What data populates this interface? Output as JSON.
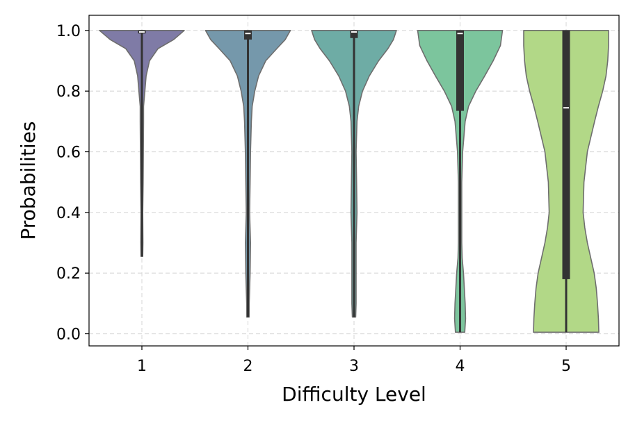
{
  "chart_data": {
    "type": "violin",
    "title": "",
    "xlabel": "Difficulty Level",
    "ylabel": "Probabilities",
    "ylim": [
      -0.04,
      1.05
    ],
    "yticks": [
      "0.0",
      "0.2",
      "0.4",
      "0.6",
      "0.8",
      "1.0"
    ],
    "categories": [
      "1",
      "2",
      "3",
      "4",
      "5"
    ],
    "grid": true,
    "colors": [
      "#7f7ba6",
      "#7598ab",
      "#6eaca5",
      "#7cc59d",
      "#b2d887"
    ],
    "series": [
      {
        "category": "1",
        "min": 0.255,
        "q1": 0.99,
        "median": 0.995,
        "q3": 1.0,
        "max": 1.0,
        "density_y": [
          0.255,
          0.3,
          0.4,
          0.5,
          0.6,
          0.7,
          0.75,
          0.8,
          0.85,
          0.9,
          0.94,
          0.97,
          1.0
        ],
        "density_halfwidth": [
          0.02,
          0.025,
          0.02,
          0.03,
          0.035,
          0.04,
          0.04,
          0.07,
          0.1,
          0.18,
          0.38,
          0.75,
          1.0
        ]
      },
      {
        "category": "2",
        "min": 0.055,
        "q1": 0.97,
        "median": 0.99,
        "q3": 1.0,
        "max": 1.0,
        "density_y": [
          0.055,
          0.1,
          0.2,
          0.3,
          0.4,
          0.5,
          0.6,
          0.7,
          0.75,
          0.8,
          0.85,
          0.9,
          0.94,
          0.97,
          1.0
        ],
        "density_halfwidth": [
          0.03,
          0.03,
          0.05,
          0.06,
          0.04,
          0.05,
          0.06,
          0.08,
          0.1,
          0.16,
          0.25,
          0.42,
          0.68,
          0.88,
          1.0
        ]
      },
      {
        "category": "3",
        "min": 0.055,
        "q1": 0.975,
        "median": 0.995,
        "q3": 1.0,
        "max": 1.0,
        "density_y": [
          0.055,
          0.1,
          0.2,
          0.3,
          0.4,
          0.5,
          0.6,
          0.7,
          0.75,
          0.8,
          0.85,
          0.9,
          0.94,
          0.97,
          1.0
        ],
        "density_halfwidth": [
          0.04,
          0.05,
          0.05,
          0.05,
          0.07,
          0.06,
          0.05,
          0.07,
          0.11,
          0.2,
          0.36,
          0.58,
          0.8,
          0.93,
          1.0
        ]
      },
      {
        "category": "4",
        "min": 0.005,
        "q1": 0.735,
        "median": 0.99,
        "q3": 1.0,
        "max": 1.0,
        "density_y": [
          0.005,
          0.05,
          0.1,
          0.15,
          0.2,
          0.25,
          0.3,
          0.4,
          0.5,
          0.6,
          0.7,
          0.75,
          0.8,
          0.85,
          0.9,
          0.95,
          1.0
        ],
        "density_halfwidth": [
          0.11,
          0.13,
          0.12,
          0.1,
          0.08,
          0.05,
          0.04,
          0.04,
          0.04,
          0.06,
          0.12,
          0.2,
          0.37,
          0.58,
          0.78,
          0.95,
          1.0
        ]
      },
      {
        "category": "5",
        "min": 0.005,
        "q1": 0.18,
        "median": 0.745,
        "q3": 1.0,
        "max": 1.0,
        "density_y": [
          0.005,
          0.05,
          0.1,
          0.15,
          0.2,
          0.25,
          0.3,
          0.35,
          0.4,
          0.5,
          0.6,
          0.7,
          0.75,
          0.8,
          0.85,
          0.9,
          0.95,
          1.0
        ],
        "density_halfwidth": [
          0.77,
          0.76,
          0.74,
          0.71,
          0.66,
          0.58,
          0.5,
          0.44,
          0.4,
          0.42,
          0.5,
          0.67,
          0.76,
          0.86,
          0.94,
          0.98,
          1.0,
          1.0
        ]
      }
    ]
  }
}
